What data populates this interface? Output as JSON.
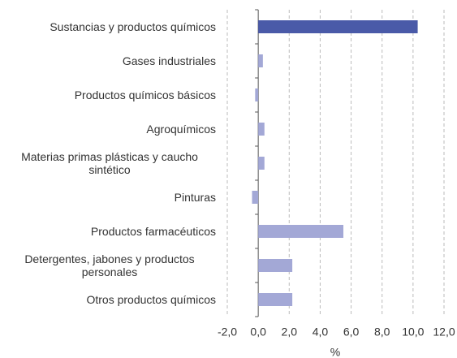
{
  "chart_data": {
    "type": "barh",
    "categories": [
      "Sustancias y productos químicos",
      "Gases industriales",
      "Productos químicos básicos",
      "Agroquímicos",
      "Materias primas plásticas y caucho sintético",
      "Pinturas",
      "Productos farmacéuticos",
      "Detergentes, jabones y productos personales",
      "Otros productos químicos"
    ],
    "values": [
      10.3,
      0.3,
      -0.2,
      0.4,
      0.4,
      -0.4,
      5.5,
      2.2,
      2.2
    ],
    "colors": [
      "#4a5aa8",
      "#a3a8d6",
      "#a3a8d6",
      "#a3a8d6",
      "#a3a8d6",
      "#a3a8d6",
      "#a3a8d6",
      "#a3a8d6",
      "#a3a8d6"
    ],
    "xlabel": "%",
    "xlim": [
      -2,
      12
    ],
    "xticks": [
      {
        "value": -2,
        "label": "-2,0"
      },
      {
        "value": 0,
        "label": "0,0"
      },
      {
        "value": 2,
        "label": "2,0"
      },
      {
        "value": 4,
        "label": "4,0"
      },
      {
        "value": 6,
        "label": "6,0"
      },
      {
        "value": 8,
        "label": "8,0"
      },
      {
        "value": 10,
        "label": "10,0"
      },
      {
        "value": 12,
        "label": "12,0"
      }
    ],
    "grid": true
  }
}
